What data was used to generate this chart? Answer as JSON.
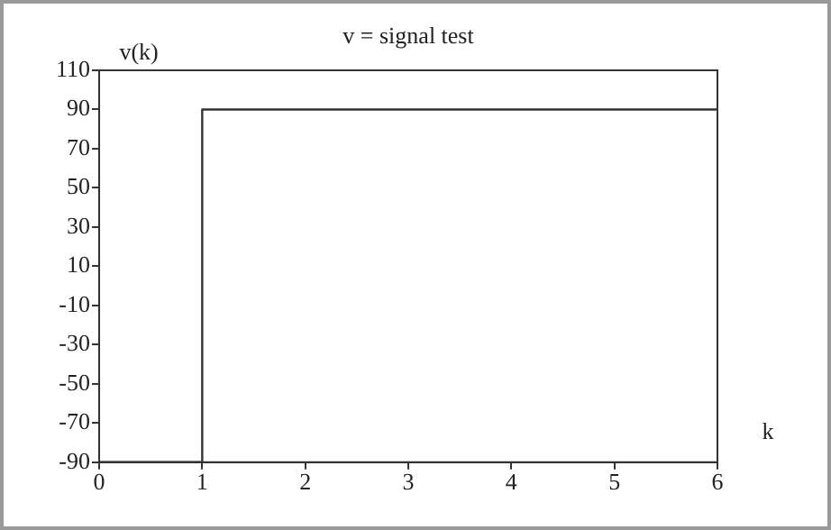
{
  "chart_data": {
    "type": "step",
    "title": "v = signal test",
    "xlabel": "k",
    "ylabel": "v(k)",
    "x": [
      0,
      1,
      6
    ],
    "series": [
      {
        "color": "#333333",
        "values": [
          -90,
          90,
          90
        ]
      }
    ],
    "xlim": [
      0,
      6
    ],
    "xticks": [
      0,
      1,
      2,
      3,
      4,
      5,
      6
    ],
    "ylim": [
      -90,
      110
    ],
    "yticks": [
      -90,
      -70,
      -50,
      -30,
      -10,
      10,
      30,
      50,
      70,
      90,
      110
    ],
    "grid": false,
    "legend": false
  }
}
